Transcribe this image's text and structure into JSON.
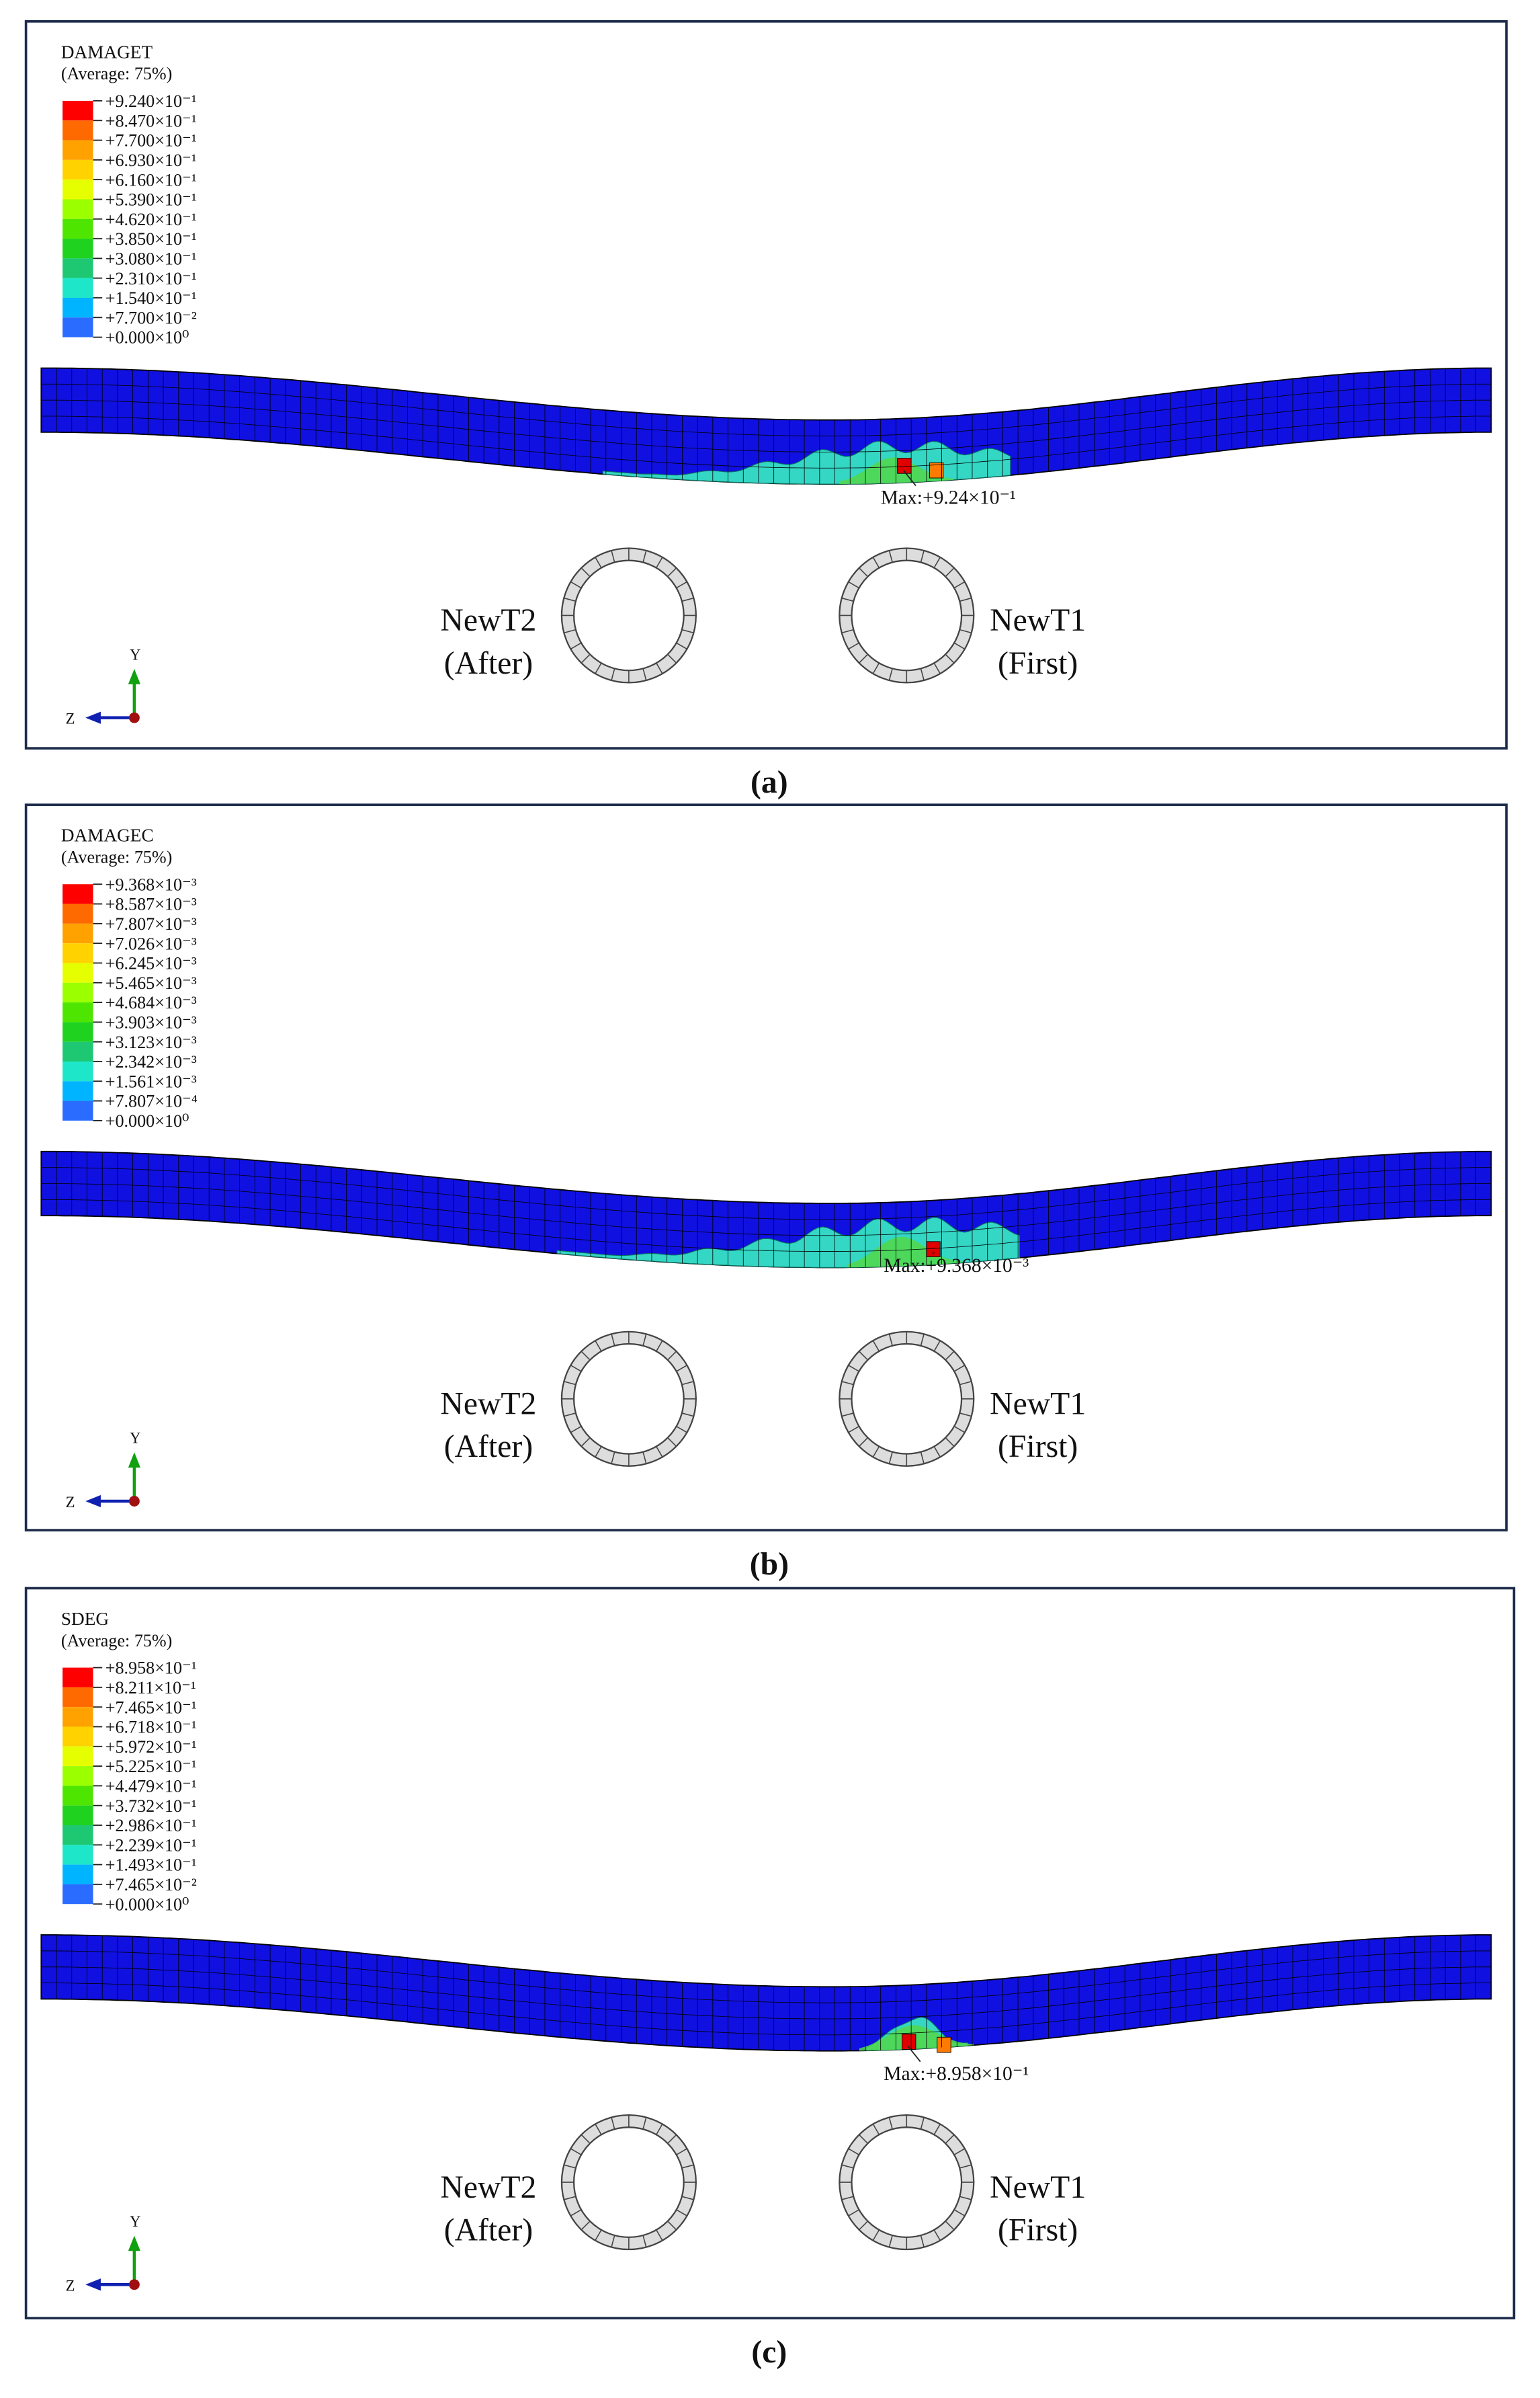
{
  "panels": [
    {
      "variable": "DAMAGET",
      "averaging": "(Average: 75%)",
      "legend": [
        "+9.240×10⁻¹",
        "+8.470×10⁻¹",
        "+7.700×10⁻¹",
        "+6.930×10⁻¹",
        "+6.160×10⁻¹",
        "+5.390×10⁻¹",
        "+4.620×10⁻¹",
        "+3.850×10⁻¹",
        "+3.080×10⁻¹",
        "+2.310×10⁻¹",
        "+1.540×10⁻¹",
        "+7.700×10⁻²",
        "+0.000×10⁰"
      ],
      "max_label": "Max:+9.24×10⁻¹",
      "tunnels": [
        {
          "name": "NewT2",
          "note": "(After)"
        },
        {
          "name": "NewT1",
          "note": "(First)"
        }
      ],
      "axes": {
        "y": "Y",
        "z": "Z"
      },
      "caption": "(a)"
    },
    {
      "variable": "DAMAGEC",
      "averaging": "(Average: 75%)",
      "legend": [
        "+9.368×10⁻³",
        "+8.587×10⁻³",
        "+7.807×10⁻³",
        "+7.026×10⁻³",
        "+6.245×10⁻³",
        "+5.465×10⁻³",
        "+4.684×10⁻³",
        "+3.903×10⁻³",
        "+3.123×10⁻³",
        "+2.342×10⁻³",
        "+1.561×10⁻³",
        "+7.807×10⁻⁴",
        "+0.000×10⁰"
      ],
      "max_label": "Max:+9.368×10⁻³",
      "tunnels": [
        {
          "name": "NewT2",
          "note": "(After)"
        },
        {
          "name": "NewT1",
          "note": "(First)"
        }
      ],
      "axes": {
        "y": "Y",
        "z": "Z"
      },
      "caption": "(b)"
    },
    {
      "variable": "SDEG",
      "averaging": "(Average: 75%)",
      "legend": [
        "+8.958×10⁻¹",
        "+8.211×10⁻¹",
        "+7.465×10⁻¹",
        "+6.718×10⁻¹",
        "+5.972×10⁻¹",
        "+5.225×10⁻¹",
        "+4.479×10⁻¹",
        "+3.732×10⁻¹",
        "+2.986×10⁻¹",
        "+2.239×10⁻¹",
        "+1.493×10⁻¹",
        "+7.465×10⁻²",
        "+0.000×10⁰"
      ],
      "max_label": "Max:+8.958×10⁻¹",
      "tunnels": [
        {
          "name": "NewT2",
          "note": "(After)"
        },
        {
          "name": "NewT1",
          "note": "(First)"
        }
      ],
      "axes": {
        "y": "Y",
        "z": "Z"
      },
      "caption": "(c)"
    }
  ]
}
